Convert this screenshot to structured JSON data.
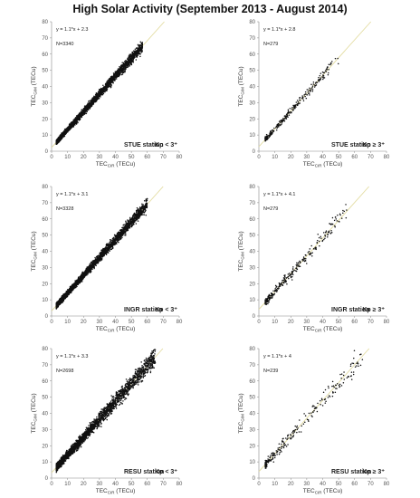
{
  "title": "High Solar Activity (September 2013 - August 2014)",
  "colors": {
    "points": "#111111",
    "fit_line": "#e3dca0",
    "axis": "#888888"
  },
  "chart_data": [
    {
      "type": "scatter",
      "xlabel_main": "TEC",
      "xlabel_sub": "CIR",
      "xlabel_unit": "(TECu)",
      "ylabel_main": "TEC",
      "ylabel_sub": "GIM",
      "ylabel_unit": "(TECu)",
      "xlim": [
        0,
        80
      ],
      "ylim": [
        0,
        80
      ],
      "xticks": [
        0,
        10,
        20,
        30,
        40,
        50,
        60,
        70,
        80
      ],
      "yticks": [
        0,
        10,
        20,
        30,
        40,
        50,
        60,
        70,
        80
      ],
      "equation": "y = 1.1*x + 2.3",
      "n_label": "N=3340",
      "station": "STUE station",
      "kp_label": "Kp < 3⁺",
      "fit": {
        "slope": 1.1,
        "intercept": 2.3
      },
      "n": 3340,
      "x_range": [
        3,
        57
      ],
      "spread": 1.6,
      "seed": 11
    },
    {
      "type": "scatter",
      "xlabel_main": "TEC",
      "xlabel_sub": "CIR",
      "xlabel_unit": "(TECu)",
      "ylabel_main": "TEC",
      "ylabel_sub": "GIM",
      "ylabel_unit": "(TECu)",
      "xlim": [
        0,
        80
      ],
      "ylim": [
        0,
        80
      ],
      "xticks": [
        0,
        10,
        20,
        30,
        40,
        50,
        60,
        70,
        80
      ],
      "yticks": [
        0,
        10,
        20,
        30,
        40,
        50,
        60,
        70,
        80
      ],
      "equation": "y = 1.1*x + 2.8",
      "n_label": "N=279",
      "station": "STUE station",
      "kp_label": "Kp ≥ 3⁺",
      "fit": {
        "slope": 1.1,
        "intercept": 2.8
      },
      "n": 279,
      "x_range": [
        4,
        50
      ],
      "spread": 1.8,
      "seed": 23
    },
    {
      "type": "scatter",
      "xlabel_main": "TEC",
      "xlabel_sub": "CIR",
      "xlabel_unit": "(TECu)",
      "ylabel_main": "TEC",
      "ylabel_sub": "GIM",
      "ylabel_unit": "(TECu)",
      "xlim": [
        0,
        80
      ],
      "ylim": [
        0,
        80
      ],
      "xticks": [
        0,
        10,
        20,
        30,
        40,
        50,
        60,
        70,
        80
      ],
      "yticks": [
        0,
        10,
        20,
        30,
        40,
        50,
        60,
        70,
        80
      ],
      "equation": "y = 1.1*x + 3.1",
      "n_label": "N=3328",
      "station": "INGR station",
      "kp_label": "Kp < 3⁺",
      "fit": {
        "slope": 1.1,
        "intercept": 3.1
      },
      "n": 3328,
      "x_range": [
        3,
        60
      ],
      "spread": 1.7,
      "seed": 37
    },
    {
      "type": "scatter",
      "xlabel_main": "TEC",
      "xlabel_sub": "CIR",
      "xlabel_unit": "(TECu)",
      "ylabel_main": "TEC",
      "ylabel_sub": "GIM",
      "ylabel_unit": "(TECu)",
      "xlim": [
        0,
        80
      ],
      "ylim": [
        0,
        80
      ],
      "xticks": [
        0,
        10,
        20,
        30,
        40,
        50,
        60,
        70,
        80
      ],
      "yticks": [
        0,
        10,
        20,
        30,
        40,
        50,
        60,
        70,
        80
      ],
      "equation": "y = 1.1*x + 4.1",
      "n_label": "N=279",
      "station": "INGR station",
      "kp_label": "Kp ≥ 3⁺",
      "fit": {
        "slope": 1.1,
        "intercept": 4.1
      },
      "n": 279,
      "x_range": [
        4,
        55
      ],
      "spread": 2.5,
      "seed": 41
    },
    {
      "type": "scatter",
      "xlabel_main": "TEC",
      "xlabel_sub": "CIR",
      "xlabel_unit": "(TECu)",
      "ylabel_main": "TEC",
      "ylabel_sub": "GIM",
      "ylabel_unit": "(TECu)",
      "xlim": [
        0,
        80
      ],
      "ylim": [
        0,
        80
      ],
      "xticks": [
        0,
        10,
        20,
        30,
        40,
        50,
        60,
        70,
        80
      ],
      "yticks": [
        0,
        10,
        20,
        30,
        40,
        50,
        60,
        70,
        80
      ],
      "equation": "y = 1.1*x + 3.3",
      "n_label": "N=2698",
      "station": "RESU station",
      "kp_label": "Kp < 3⁺",
      "fit": {
        "slope": 1.1,
        "intercept": 3.3
      },
      "n": 2698,
      "x_range": [
        3,
        65
      ],
      "spread": 2.6,
      "seed": 53
    },
    {
      "type": "scatter",
      "xlabel_main": "TEC",
      "xlabel_sub": "CIR",
      "xlabel_unit": "(TECu)",
      "ylabel_main": "TEC",
      "ylabel_sub": "GIM",
      "ylabel_unit": "(TECu)",
      "xlim": [
        0,
        80
      ],
      "ylim": [
        0,
        80
      ],
      "xticks": [
        0,
        10,
        20,
        30,
        40,
        50,
        60,
        70,
        80
      ],
      "yticks": [
        0,
        10,
        20,
        30,
        40,
        50,
        60,
        70,
        80
      ],
      "equation": "y = 1.1*x + 4",
      "n_label": "N=239",
      "station": "RESU station",
      "kp_label": "Kp ≥ 3⁺",
      "fit": {
        "slope": 1.1,
        "intercept": 4
      },
      "n": 239,
      "x_range": [
        4,
        65
      ],
      "spread": 3.0,
      "seed": 67
    }
  ]
}
